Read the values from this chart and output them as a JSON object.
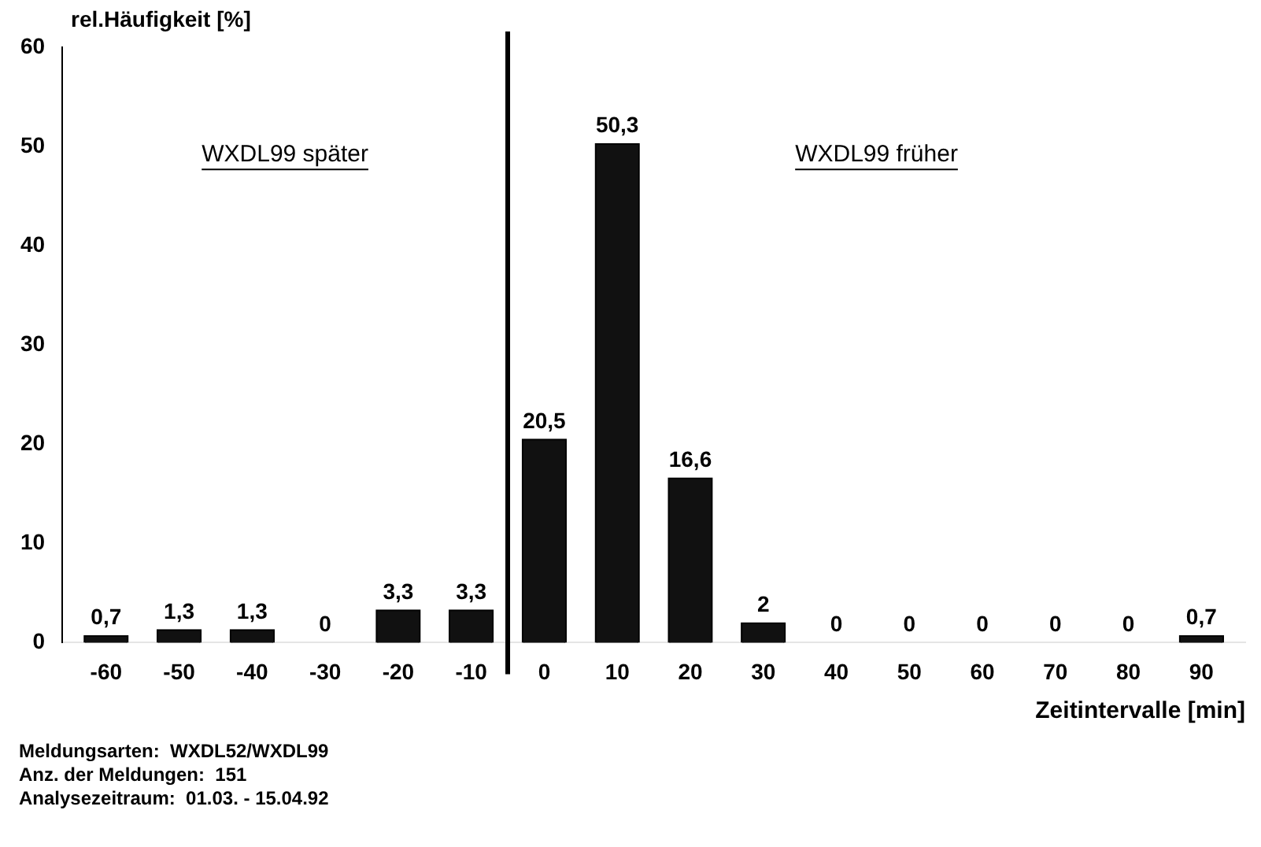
{
  "chart_data": {
    "type": "bar",
    "ylabel": "rel.Häufigkeit [%]",
    "xlabel": "Zeitintervalle [min]",
    "x": [
      -60,
      -50,
      -40,
      -30,
      -20,
      -10,
      0,
      10,
      20,
      30,
      40,
      50,
      60,
      70,
      80,
      90
    ],
    "values": [
      0.7,
      1.3,
      1.3,
      0,
      3.3,
      3.3,
      20.5,
      50.3,
      16.6,
      2,
      0,
      0,
      0,
      0,
      0,
      0.7
    ],
    "value_labels": [
      "0,7",
      "1,3",
      "1,3",
      "0",
      "3,3",
      "3,3",
      "20,5",
      "50,3",
      "16,6",
      "2",
      "0",
      "0",
      "0",
      "0",
      "0",
      "0,7"
    ],
    "color": "#111111",
    "xlim": [
      -66,
      96
    ],
    "xticks": [
      -60,
      -50,
      -40,
      -30,
      -20,
      -10,
      0,
      10,
      20,
      30,
      40,
      50,
      60,
      70,
      80,
      90
    ],
    "ylim": [
      0,
      60
    ],
    "yticks": [
      0,
      10,
      20,
      30,
      40,
      50,
      60
    ],
    "grid": false,
    "ref_lines": [
      {
        "axis": "x",
        "value": -5,
        "color": "#000000"
      }
    ],
    "annotations": [
      "WXDL99 später",
      "WXDL99 früher",
      "Meldungsarten:  WXDL52/WXDL99",
      "Anz. der Meldungen:  151",
      "Analysezeitraum:  01.03. - 15.04.92"
    ]
  }
}
